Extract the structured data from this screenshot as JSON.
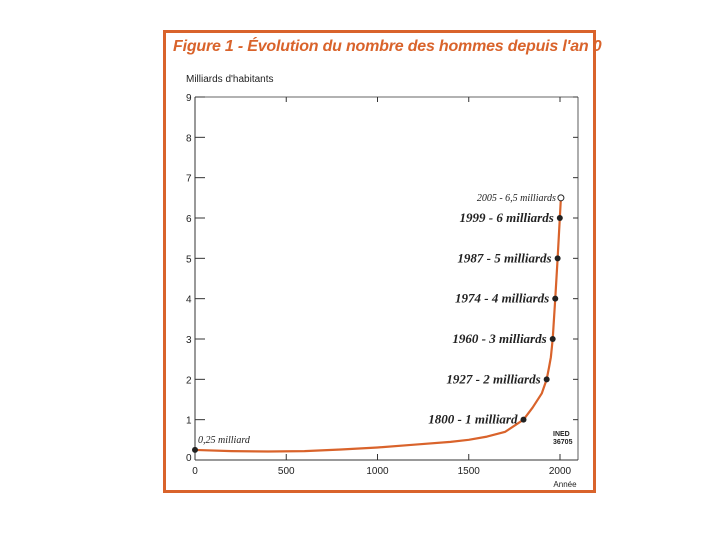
{
  "chart_data": {
    "type": "line",
    "title": "Figure 1 - Évolution du nombre des hommes depuis l'an 0",
    "ylabel": "Milliards d'habitants",
    "xlabel": "Année",
    "xlim": [
      0,
      2000
    ],
    "ylim": [
      0,
      9
    ],
    "x_ticks": [
      "0",
      "500",
      "1000",
      "1500",
      "2000"
    ],
    "y_ticks": [
      "0",
      "1",
      "2",
      "3",
      "4",
      "5",
      "6",
      "7",
      "8",
      "9"
    ],
    "grid": false,
    "line_color": "#d9632b",
    "curve": [
      {
        "x": 0,
        "y": 0.25
      },
      {
        "x": 200,
        "y": 0.22
      },
      {
        "x": 400,
        "y": 0.21
      },
      {
        "x": 600,
        "y": 0.22
      },
      {
        "x": 800,
        "y": 0.26
      },
      {
        "x": 1000,
        "y": 0.31
      },
      {
        "x": 1200,
        "y": 0.38
      },
      {
        "x": 1400,
        "y": 0.45
      },
      {
        "x": 1500,
        "y": 0.5
      },
      {
        "x": 1600,
        "y": 0.58
      },
      {
        "x": 1700,
        "y": 0.7
      },
      {
        "x": 1800,
        "y": 1.0
      },
      {
        "x": 1850,
        "y": 1.3
      },
      {
        "x": 1900,
        "y": 1.65
      },
      {
        "x": 1927,
        "y": 2.0
      },
      {
        "x": 1940,
        "y": 2.3
      },
      {
        "x": 1950,
        "y": 2.55
      },
      {
        "x": 1960,
        "y": 3.0
      },
      {
        "x": 1974,
        "y": 4.0
      },
      {
        "x": 1987,
        "y": 5.0
      },
      {
        "x": 1999,
        "y": 6.0
      },
      {
        "x": 2005,
        "y": 6.5
      }
    ],
    "milestones": [
      {
        "x": 0,
        "y": 0.25,
        "label": "0,25 milliard",
        "style": "small",
        "marker": "filled"
      },
      {
        "x": 1800,
        "y": 1,
        "label": "1800 - 1 milliard",
        "style": "main",
        "marker": "filled"
      },
      {
        "x": 1927,
        "y": 2,
        "label": "1927 - 2 milliards",
        "style": "main",
        "marker": "filled"
      },
      {
        "x": 1960,
        "y": 3,
        "label": "1960 - 3 milliards",
        "style": "main",
        "marker": "filled"
      },
      {
        "x": 1974,
        "y": 4,
        "label": "1974 - 4 milliards",
        "style": "main",
        "marker": "filled"
      },
      {
        "x": 1987,
        "y": 5,
        "label": "1987 - 5 milliards",
        "style": "main",
        "marker": "filled"
      },
      {
        "x": 1999,
        "y": 6,
        "label": "1999 - 6 milliards",
        "style": "main",
        "marker": "filled"
      },
      {
        "x": 2005,
        "y": 6.5,
        "label": "2005 - 6,5 milliards",
        "style": "small",
        "marker": "open"
      }
    ],
    "source_lines": [
      "INED",
      "36705"
    ]
  }
}
